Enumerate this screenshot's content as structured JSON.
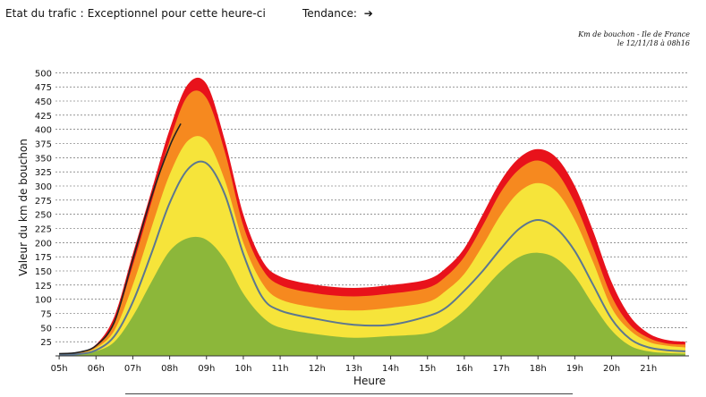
{
  "header": {
    "status_label": "Etat du trafic :",
    "status_value": "Exceptionnel pour cette heure-ci",
    "trend_label": "Tendance:",
    "trend_icon": "arrow-right-icon"
  },
  "chart_data": {
    "type": "area",
    "title": "Km de bouchon - Ile de France",
    "subtitle": "le 12/11/18 à 08h16",
    "xlabel": "Heure",
    "ylabel": "Valeur du  km de bouchon",
    "x": [
      5,
      5.5,
      6,
      6.5,
      7,
      7.5,
      8,
      8.5,
      9,
      9.5,
      10,
      10.5,
      11,
      12,
      13,
      14,
      15,
      15.5,
      16,
      16.5,
      17,
      17.5,
      18,
      18.5,
      19,
      19.5,
      20,
      20.5,
      21,
      21.5,
      22
    ],
    "xlim": [
      4.9,
      22.1
    ],
    "ylim": [
      0,
      510
    ],
    "yticks": [
      25,
      50,
      75,
      100,
      125,
      150,
      175,
      200,
      225,
      250,
      275,
      300,
      325,
      350,
      375,
      400,
      425,
      450,
      475,
      500
    ],
    "xtick_labels": [
      "05h",
      "06h",
      "07h",
      "08h",
      "09h",
      "10h",
      "11h",
      "12h",
      "13h",
      "14h",
      "15h",
      "16h",
      "17h",
      "18h",
      "19h",
      "20h",
      "21h"
    ],
    "bands": [
      {
        "color": "#e8121b",
        "values": [
          3,
          6,
          20,
          70,
          180,
          290,
          400,
          480,
          480,
          380,
          250,
          170,
          140,
          125,
          120,
          125,
          135,
          155,
          190,
          250,
          310,
          350,
          365,
          350,
          300,
          220,
          130,
          70,
          40,
          28,
          25
        ]
      },
      {
        "color": "#f6891f",
        "values": [
          3,
          5,
          18,
          60,
          160,
          270,
          380,
          460,
          455,
          360,
          230,
          155,
          125,
          110,
          105,
          110,
          120,
          140,
          175,
          230,
          290,
          330,
          345,
          325,
          270,
          190,
          105,
          55,
          32,
          22,
          20
        ]
      },
      {
        "color": "#f6e43a",
        "values": [
          2,
          4,
          14,
          45,
          125,
          225,
          320,
          380,
          380,
          310,
          200,
          130,
          100,
          85,
          80,
          85,
          95,
          115,
          145,
          195,
          250,
          290,
          305,
          290,
          240,
          165,
          85,
          45,
          25,
          18,
          15
        ]
      },
      {
        "color": "#8cb73a",
        "values": [
          1,
          2,
          8,
          25,
          70,
          130,
          185,
          208,
          205,
          170,
          110,
          70,
          50,
          38,
          32,
          35,
          40,
          55,
          80,
          115,
          150,
          175,
          182,
          172,
          140,
          90,
          45,
          18,
          8,
          5,
          4
        ]
      }
    ],
    "series": [
      {
        "color": "#5c7790",
        "values": [
          2,
          3,
          10,
          35,
          95,
          180,
          270,
          330,
          340,
          285,
          180,
          105,
          80,
          65,
          55,
          55,
          70,
          85,
          115,
          150,
          190,
          225,
          240,
          225,
          185,
          125,
          65,
          30,
          15,
          10,
          8
        ]
      },
      {
        "color": "#222222",
        "x": [
          5,
          5.5,
          6,
          6.5,
          7,
          7.5,
          8,
          8.3
        ],
        "values": [
          4,
          6,
          18,
          60,
          170,
          280,
          370,
          410
        ]
      }
    ]
  }
}
